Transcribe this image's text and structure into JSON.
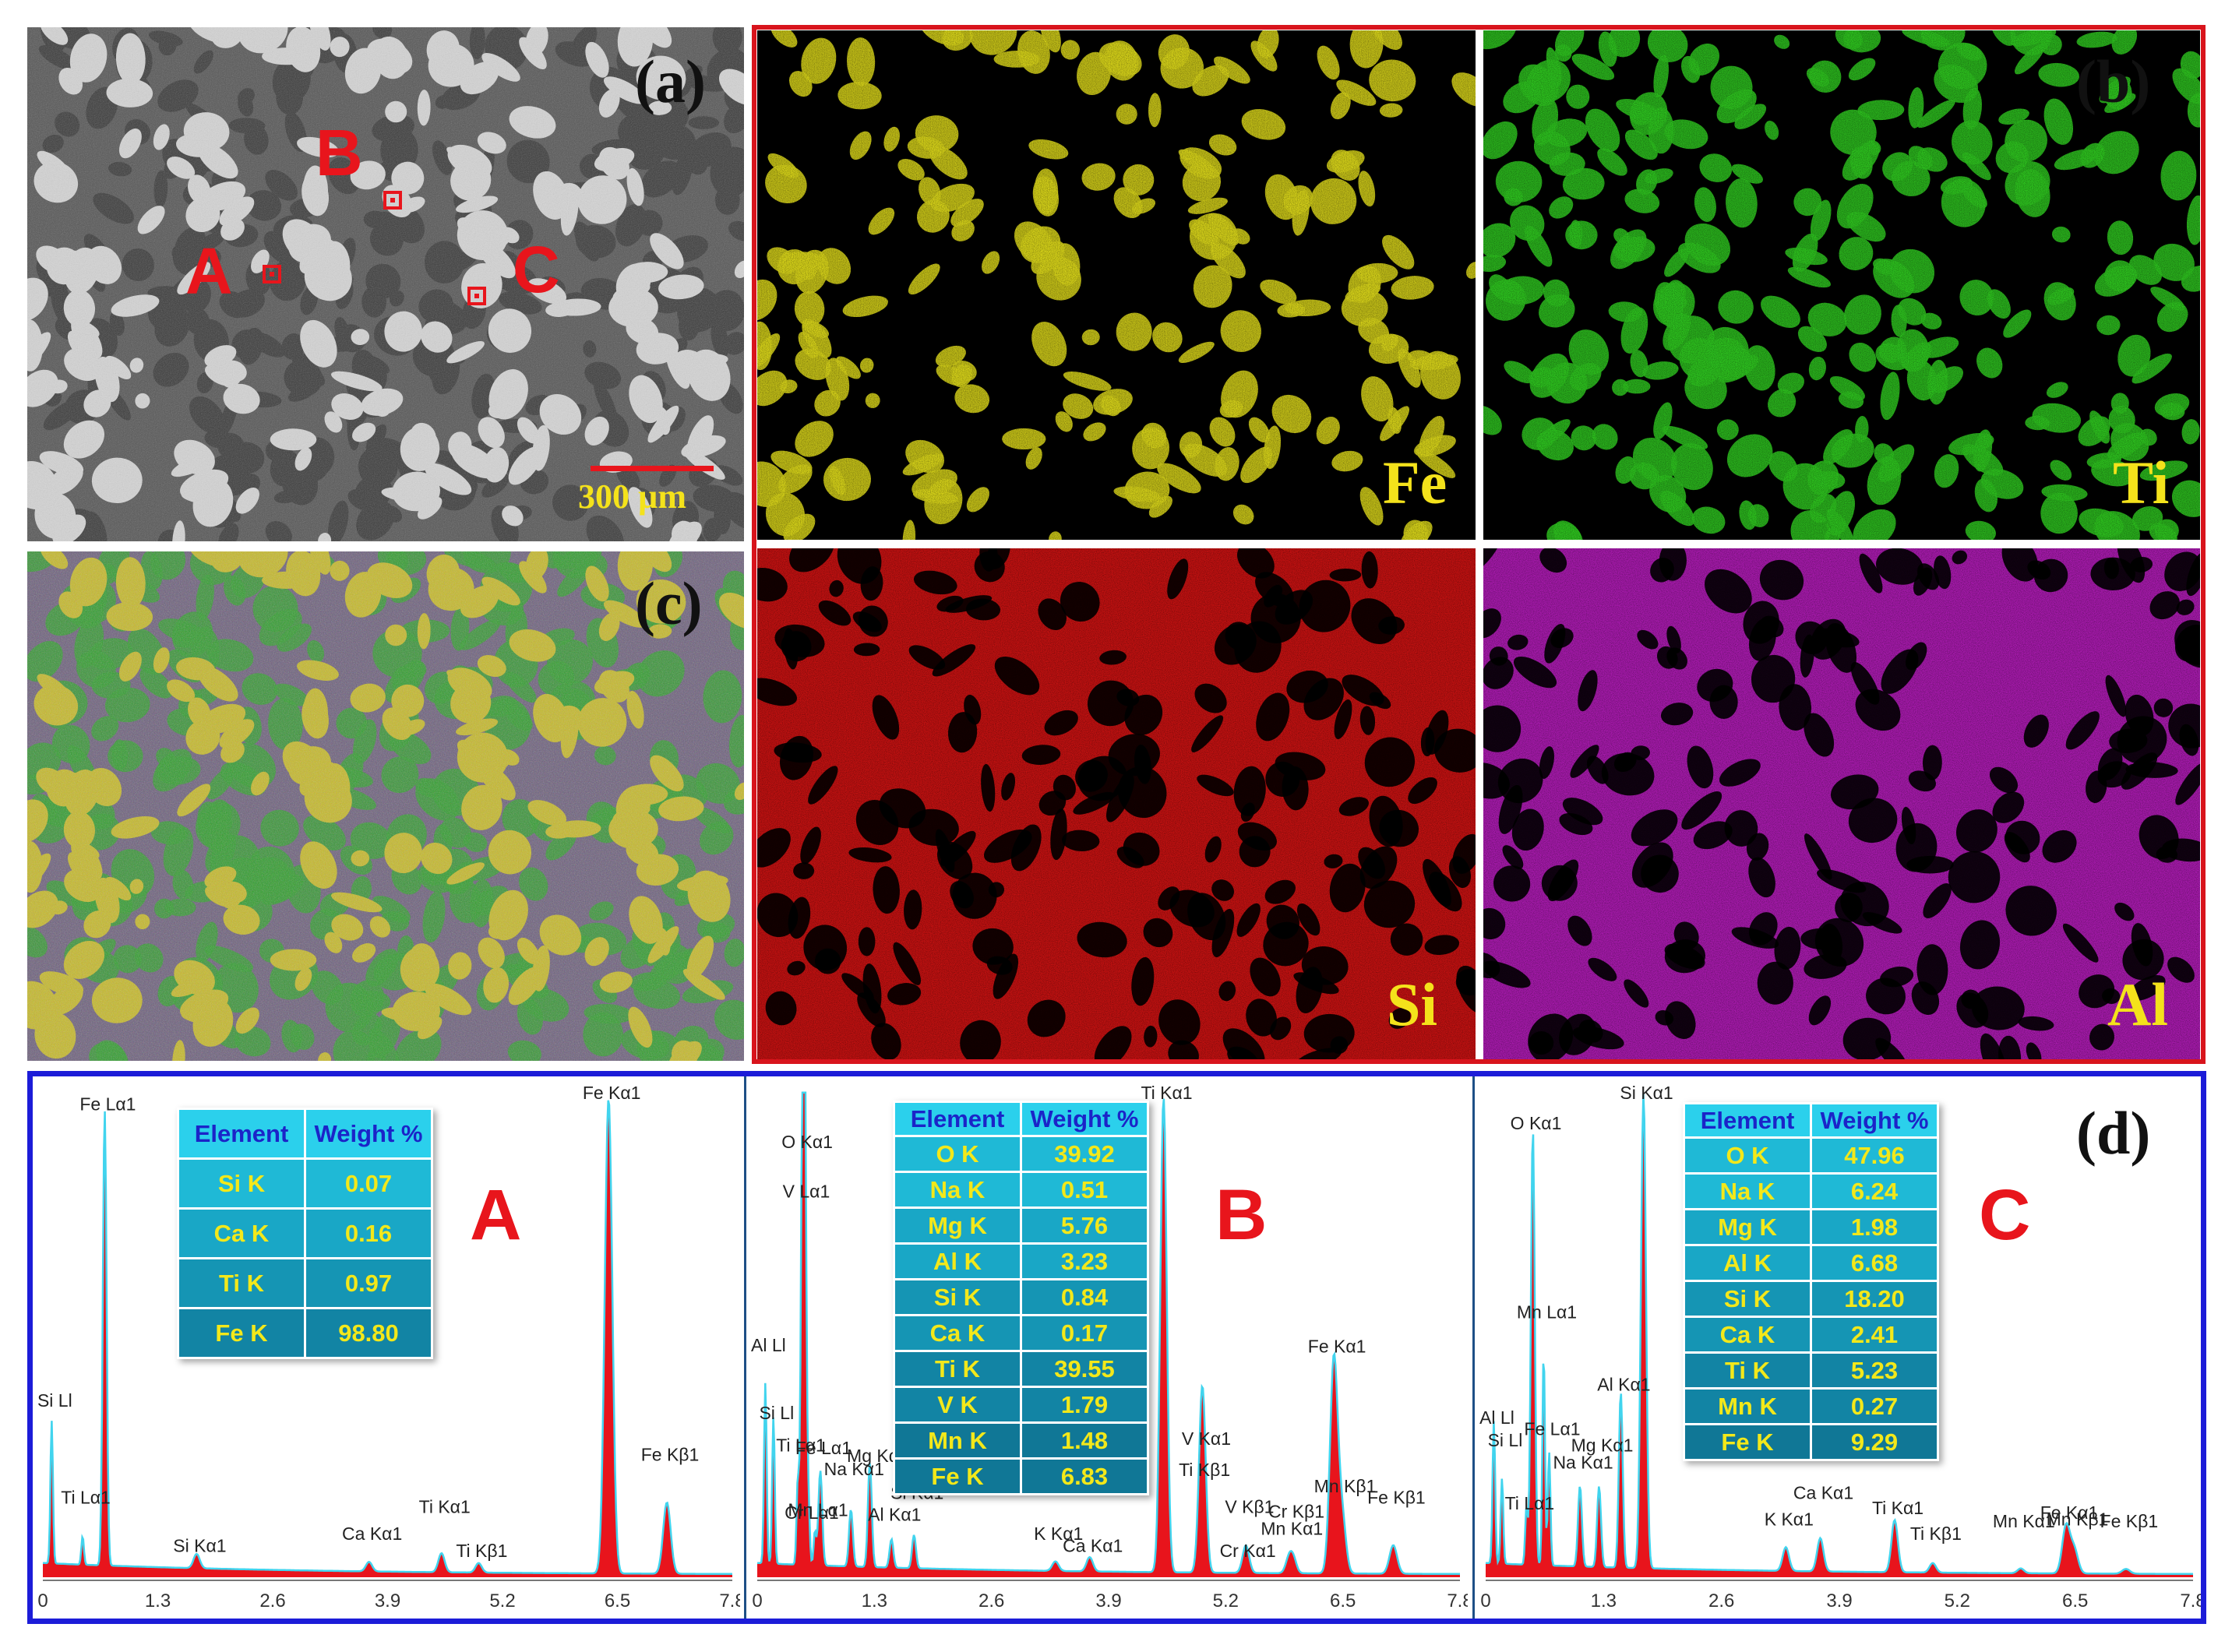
{
  "panel_a": {
    "label": "(a)",
    "scale_bar": "300 µm",
    "points": [
      {
        "label": "A"
      },
      {
        "label": "B"
      },
      {
        "label": "C"
      }
    ]
  },
  "panel_b": {
    "label": "(b)",
    "maps": [
      {
        "element": "Fe",
        "color": "#d6d21a"
      },
      {
        "element": "Ti",
        "color": "#2ec21f"
      },
      {
        "element": "Si",
        "color": "#e21414"
      },
      {
        "element": "Al",
        "color": "#c21fc8"
      }
    ]
  },
  "panel_c": {
    "label": "(c)"
  },
  "panel_d": {
    "label": "(d)",
    "spectra": [
      {
        "name": "A",
        "table_header": [
          "Element",
          "Weight %"
        ],
        "table_rows": [
          [
            "Si K",
            "0.07"
          ],
          [
            "Ca K",
            "0.16"
          ],
          [
            "Ti K",
            "0.97"
          ],
          [
            "Fe K",
            "98.80"
          ]
        ],
        "x_ticks": [
          "0",
          "1.3",
          "2.6",
          "3.9",
          "5.2",
          "6.5",
          "7.8"
        ],
        "peaks": [
          {
            "label": "Fe Lα1",
            "x": 0.7,
            "h": 0.96,
            "w": 0.03
          },
          {
            "label": "Si Ll",
            "x": 0.1,
            "h": 0.3,
            "w": 0.02
          },
          {
            "label": "Ti Lα1",
            "x": 0.45,
            "h": 0.06,
            "w": 0.02
          },
          {
            "label": "Si Kα1",
            "x": 1.74,
            "h": 0.03,
            "w": 0.05
          },
          {
            "label": "Ca Kα1",
            "x": 3.69,
            "h": 0.02,
            "w": 0.05
          },
          {
            "label": "Ti Kα1",
            "x": 4.51,
            "h": 0.04,
            "w": 0.05
          },
          {
            "label": "Ti Kβ1",
            "x": 4.93,
            "h": 0.02,
            "w": 0.05
          },
          {
            "label": "Fe Kα1",
            "x": 6.4,
            "h": 1.0,
            "w": 0.06
          },
          {
            "label": "Fe Kβ1",
            "x": 7.06,
            "h": 0.15,
            "w": 0.06
          }
        ]
      },
      {
        "name": "B",
        "table_header": [
          "Element",
          "Weight %"
        ],
        "table_rows": [
          [
            "O K",
            "39.92"
          ],
          [
            "Na K",
            "0.51"
          ],
          [
            "Mg K",
            "5.76"
          ],
          [
            "Al K",
            "3.23"
          ],
          [
            "Si K",
            "0.84"
          ],
          [
            "Ca K",
            "0.17"
          ],
          [
            "Ti K",
            "39.55"
          ],
          [
            "V K",
            "1.79"
          ],
          [
            "Mn K",
            "1.48"
          ],
          [
            "Fe K",
            "6.83"
          ]
        ],
        "x_ticks": [
          "0",
          "1.3",
          "2.6",
          "3.9",
          "5.2",
          "6.5",
          "7.8"
        ],
        "peaks": [
          {
            "label": "O Kα1",
            "x": 0.52,
            "h": 0.88,
            "w": 0.03
          },
          {
            "label": "V Lα1",
            "x": 0.51,
            "h": 0.74,
            "w": 0.03
          },
          {
            "label": "Al Ll",
            "x": 0.09,
            "h": 0.38,
            "w": 0.02
          },
          {
            "label": "Si Ll",
            "x": 0.18,
            "h": 0.31,
            "w": 0.02
          },
          {
            "label": "Fe Lα1",
            "x": 0.7,
            "h": 0.2,
            "w": 0.03
          },
          {
            "label": "Ti Lα1",
            "x": 0.45,
            "h": 0.17,
            "w": 0.02
          },
          {
            "label": "Cr Lα1",
            "x": 0.57,
            "h": 0.1,
            "w": 0.02
          },
          {
            "label": "Mn Lα1",
            "x": 0.64,
            "h": 0.07,
            "w": 0.02
          },
          {
            "label": "Na Kα1",
            "x": 1.04,
            "h": 0.12,
            "w": 0.03
          },
          {
            "label": "Mg Kα",
            "x": 1.25,
            "h": 0.22,
            "w": 0.03
          },
          {
            "label": "Al Kα1",
            "x": 1.49,
            "h": 0.06,
            "w": 0.03
          },
          {
            "label": "Si Kα1",
            "x": 1.74,
            "h": 0.07,
            "w": 0.03
          },
          {
            "label": "Ca Kα1",
            "x": 3.69,
            "h": 0.03,
            "w": 0.05
          },
          {
            "label": "K Kα1",
            "x": 3.31,
            "h": 0.02,
            "w": 0.05
          },
          {
            "label": "Ti Kα1",
            "x": 4.51,
            "h": 1.0,
            "w": 0.05
          },
          {
            "label": "Ti Kβ1",
            "x": 4.93,
            "h": 0.19,
            "w": 0.05
          },
          {
            "label": "V Kα1",
            "x": 4.95,
            "h": 0.22,
            "w": 0.05
          },
          {
            "label": "V Kβ1",
            "x": 5.43,
            "h": 0.04,
            "w": 0.05
          },
          {
            "label": "Cr Kα1",
            "x": 5.41,
            "h": 0.02,
            "w": 0.05
          },
          {
            "label": "Mn Kα1",
            "x": 5.9,
            "h": 0.03,
            "w": 0.05
          },
          {
            "label": "Cr Kβ1",
            "x": 5.95,
            "h": 0.03,
            "w": 0.05
          },
          {
            "label": "Fe Kα1",
            "x": 6.4,
            "h": 0.45,
            "w": 0.06
          },
          {
            "label": "Mn Kβ1",
            "x": 6.49,
            "h": 0.12,
            "w": 0.06
          },
          {
            "label": "Fe Kβ1",
            "x": 7.06,
            "h": 0.06,
            "w": 0.06
          }
        ]
      },
      {
        "name": "C",
        "table_header": [
          "Element",
          "Weight %"
        ],
        "table_rows": [
          [
            "O K",
            "47.96"
          ],
          [
            "Na K",
            "6.24"
          ],
          [
            "Mg K",
            "1.98"
          ],
          [
            "Al K",
            "6.68"
          ],
          [
            "Si K",
            "18.20"
          ],
          [
            "Ca K",
            "2.41"
          ],
          [
            "Ti K",
            "5.23"
          ],
          [
            "Mn K",
            "0.27"
          ],
          [
            "Fe K",
            "9.29"
          ]
        ],
        "x_ticks": [
          "0",
          "1.3",
          "2.6",
          "3.9",
          "5.2",
          "6.5",
          "7.8"
        ],
        "peaks": [
          {
            "label": "O Kα1",
            "x": 0.52,
            "h": 0.92,
            "w": 0.03
          },
          {
            "label": "Si Kα1",
            "x": 1.74,
            "h": 1.0,
            "w": 0.04
          },
          {
            "label": "Mn Lα1",
            "x": 0.64,
            "h": 0.45,
            "w": 0.02
          },
          {
            "label": "Al Ll",
            "x": 0.09,
            "h": 0.3,
            "w": 0.02
          },
          {
            "label": "Fe Lα1",
            "x": 0.7,
            "h": 0.24,
            "w": 0.02
          },
          {
            "label": "Si Ll",
            "x": 0.18,
            "h": 0.18,
            "w": 0.02
          },
          {
            "label": "Ti Lα1",
            "x": 0.45,
            "h": 0.12,
            "w": 0.02
          },
          {
            "label": "Na Kα1",
            "x": 1.04,
            "h": 0.17,
            "w": 0.03
          },
          {
            "label": "Mg Kα1",
            "x": 1.25,
            "h": 0.17,
            "w": 0.03
          },
          {
            "label": "Al Kα1",
            "x": 1.49,
            "h": 0.37,
            "w": 0.03
          },
          {
            "label": "K Kα1",
            "x": 3.31,
            "h": 0.05,
            "w": 0.05
          },
          {
            "label": "Ca Kα1",
            "x": 3.69,
            "h": 0.07,
            "w": 0.05
          },
          {
            "label": "Ti Kα1",
            "x": 4.51,
            "h": 0.11,
            "w": 0.05
          },
          {
            "label": "Ti Kβ1",
            "x": 4.93,
            "h": 0.02,
            "w": 0.05
          },
          {
            "label": "Mn Kα1",
            "x": 5.9,
            "h": 0.01,
            "w": 0.05
          },
          {
            "label": "Fe Kα1",
            "x": 6.4,
            "h": 0.1,
            "w": 0.06
          },
          {
            "label": "Mn Kβ1",
            "x": 6.49,
            "h": 0.05,
            "w": 0.06
          },
          {
            "label": "Fe Kβ1",
            "x": 7.06,
            "h": 0.01,
            "w": 0.06
          }
        ]
      }
    ]
  }
}
